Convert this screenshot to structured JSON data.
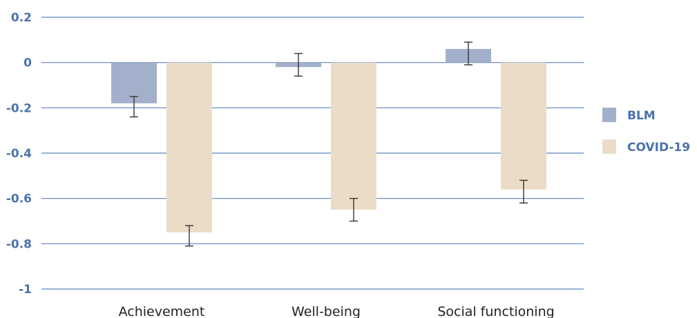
{
  "chart_data": {
    "type": "bar",
    "categories": [
      "Achievement",
      "Well-being",
      "Social functioning"
    ],
    "series": [
      {
        "name": "BLM",
        "color": "#a3b0cb",
        "values": [
          -0.18,
          -0.02,
          0.06
        ],
        "error_low": [
          -0.24,
          -0.06,
          -0.01
        ],
        "error_high": [
          -0.15,
          0.04,
          0.09
        ]
      },
      {
        "name": "COVID-19",
        "color": "#ebdcc8",
        "values": [
          -0.75,
          -0.65,
          -0.56
        ],
        "error_low": [
          -0.81,
          -0.7,
          -0.62
        ],
        "error_high": [
          -0.72,
          -0.6,
          -0.52
        ]
      }
    ],
    "y_ticks": [
      "0.2",
      "0",
      "-0.2",
      "-0.4",
      "-0.6",
      "-0.8",
      "-1"
    ],
    "ylim": [
      -1,
      0.2
    ],
    "grid": true,
    "legend_position": "right",
    "gridline_color": "#5b83c0",
    "axis_label_color": "#4a72ad"
  }
}
